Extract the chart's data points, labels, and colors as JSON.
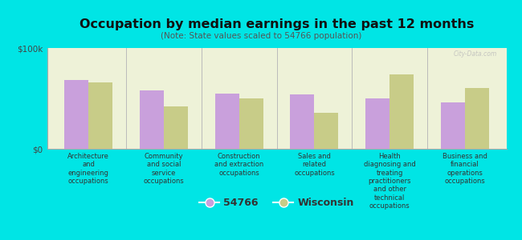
{
  "title": "Occupation by median earnings in the past 12 months",
  "subtitle": "(Note: State values scaled to 54766 population)",
  "background_color": "#00e5e5",
  "plot_bg_color": "#eef2d8",
  "categories": [
    "Architecture\nand\nengineering\noccupations",
    "Community\nand social\nservice\noccupations",
    "Construction\nand extraction\noccupations",
    "Sales and\nrelated\noccupations",
    "Health\ndiagnosing and\ntreating\npractitioners\nand other\ntechnical\noccupations",
    "Business and\nfinancial\noperations\noccupations"
  ],
  "values_54766": [
    68000,
    58000,
    55000,
    54000,
    50000,
    46000
  ],
  "values_wisconsin": [
    66000,
    42000,
    50000,
    36000,
    74000,
    60000
  ],
  "color_54766": "#c9a0dc",
  "color_wisconsin": "#c8cc88",
  "ylabel_0": "$0",
  "ytick_100k": "$100k",
  "ylim": [
    0,
    100000
  ],
  "legend_54766": "54766",
  "legend_wisconsin": "Wisconsin",
  "watermark": "City-Data.com"
}
